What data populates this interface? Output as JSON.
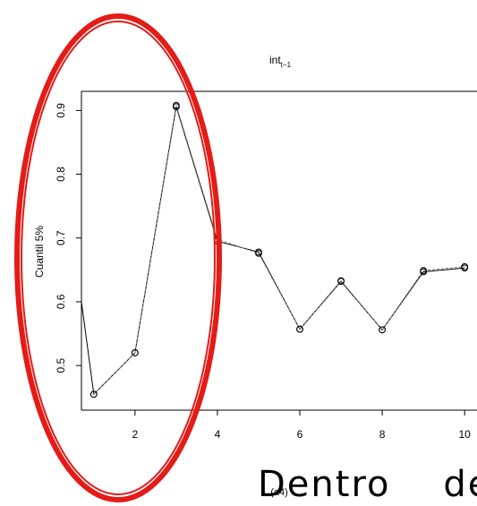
{
  "chart_data": {
    "type": "line",
    "title": "int",
    "title_subscript": "t−1",
    "ylabel": "Cuantil 5%",
    "xlabel": "",
    "caption": "(a4)",
    "x": [
      1,
      2,
      3,
      4,
      5,
      6,
      7,
      8,
      9,
      10
    ],
    "xlim": [
      0.7,
      10.3
    ],
    "ylim": [
      0.43,
      0.93
    ],
    "x_ticks": [
      2,
      4,
      6,
      8,
      10
    ],
    "y_ticks": [
      0.5,
      0.6,
      0.7,
      0.8,
      0.9
    ],
    "series": [
      {
        "values": [
          0.455,
          0.52,
          0.906,
          0.695,
          0.678,
          0.557,
          0.632,
          0.556,
          0.647,
          0.653
        ]
      },
      {
        "values": [
          0.455,
          0.52,
          0.908,
          0.698,
          0.676,
          0.557,
          0.633,
          0.556,
          0.649,
          0.655
        ]
      }
    ],
    "entry_value_x0": 0.6,
    "grid": false,
    "colors": {
      "series_main": "#000000",
      "series_alt": "#7a7a7a",
      "highlight": "#e41b17"
    }
  },
  "body_text": "Dentro    de"
}
